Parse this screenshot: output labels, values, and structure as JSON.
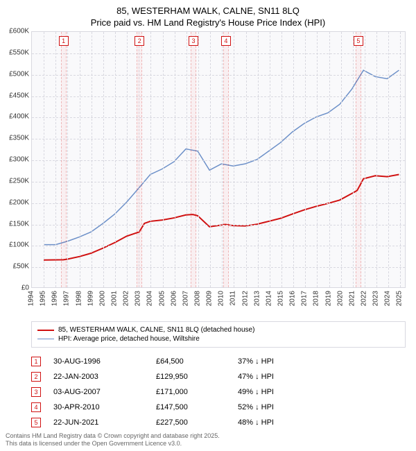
{
  "title_line1": "85, WESTERHAM WALK, CALNE, SN11 8LQ",
  "title_line2": "Price paid vs. HM Land Registry's House Price Index (HPI)",
  "chart": {
    "type": "line",
    "background_color": "#f9f9fb",
    "grid_color": "#d8d8e0",
    "x_min": 1994,
    "x_max": 2025.5,
    "y_min": 0,
    "y_max": 600000,
    "y_ticks": [
      0,
      50000,
      100000,
      150000,
      200000,
      250000,
      300000,
      350000,
      400000,
      450000,
      500000,
      550000,
      600000
    ],
    "y_tick_labels": [
      "£0",
      "£50K",
      "£100K",
      "£150K",
      "£200K",
      "£250K",
      "£300K",
      "£350K",
      "£400K",
      "£450K",
      "£500K",
      "£550K",
      "£600K"
    ],
    "x_ticks": [
      1994,
      1995,
      1996,
      1997,
      1998,
      1999,
      2000,
      2001,
      2002,
      2003,
      2004,
      2005,
      2006,
      2007,
      2008,
      2009,
      2010,
      2011,
      2012,
      2013,
      2014,
      2015,
      2016,
      2017,
      2018,
      2019,
      2020,
      2021,
      2022,
      2023,
      2024,
      2025
    ],
    "series": [
      {
        "name": "property",
        "label": "85, WESTERHAM WALK, CALNE, SN11 8LQ (detached house)",
        "color": "#d01010",
        "width": 2,
        "points": [
          [
            1995,
            64000
          ],
          [
            1996.66,
            64500
          ],
          [
            1997,
            66000
          ],
          [
            1998,
            72000
          ],
          [
            1999,
            80000
          ],
          [
            2000,
            92000
          ],
          [
            2001,
            105000
          ],
          [
            2002,
            120000
          ],
          [
            2003.06,
            129950
          ],
          [
            2003.5,
            150000
          ],
          [
            2004,
            155000
          ],
          [
            2005,
            158000
          ],
          [
            2006,
            163000
          ],
          [
            2007,
            170000
          ],
          [
            2007.59,
            171000
          ],
          [
            2008,
            168000
          ],
          [
            2009,
            142000
          ],
          [
            2010.33,
            147500
          ],
          [
            2011,
            145000
          ],
          [
            2012,
            144000
          ],
          [
            2013,
            148000
          ],
          [
            2014,
            155000
          ],
          [
            2015,
            162000
          ],
          [
            2016,
            172000
          ],
          [
            2017,
            182000
          ],
          [
            2018,
            190000
          ],
          [
            2019,
            197000
          ],
          [
            2020,
            205000
          ],
          [
            2021,
            220000
          ],
          [
            2021.47,
            227500
          ],
          [
            2022,
            255000
          ],
          [
            2023,
            262000
          ],
          [
            2024,
            260000
          ],
          [
            2025,
            265000
          ]
        ]
      },
      {
        "name": "hpi",
        "label": "HPI: Average price, detached house, Wiltshire",
        "color": "#6b8fc8",
        "width": 1.5,
        "points": [
          [
            1995,
            100000
          ],
          [
            1996,
            100000
          ],
          [
            1997,
            108000
          ],
          [
            1998,
            118000
          ],
          [
            1999,
            130000
          ],
          [
            2000,
            150000
          ],
          [
            2001,
            172000
          ],
          [
            2002,
            200000
          ],
          [
            2003,
            232000
          ],
          [
            2004,
            265000
          ],
          [
            2005,
            278000
          ],
          [
            2006,
            295000
          ],
          [
            2007,
            325000
          ],
          [
            2008,
            320000
          ],
          [
            2009,
            275000
          ],
          [
            2010,
            290000
          ],
          [
            2011,
            285000
          ],
          [
            2012,
            290000
          ],
          [
            2013,
            300000
          ],
          [
            2014,
            320000
          ],
          [
            2015,
            340000
          ],
          [
            2016,
            365000
          ],
          [
            2017,
            385000
          ],
          [
            2018,
            400000
          ],
          [
            2019,
            410000
          ],
          [
            2020,
            430000
          ],
          [
            2021,
            465000
          ],
          [
            2022,
            510000
          ],
          [
            2023,
            495000
          ],
          [
            2024,
            490000
          ],
          [
            2025,
            510000
          ]
        ]
      }
    ],
    "markers": [
      {
        "n": "1",
        "x": 1996.66
      },
      {
        "n": "2",
        "x": 2003.06
      },
      {
        "n": "3",
        "x": 2007.59
      },
      {
        "n": "4",
        "x": 2010.33
      },
      {
        "n": "5",
        "x": 2021.47
      }
    ]
  },
  "legend": {
    "items": [
      {
        "color": "#d01010",
        "width": 2,
        "label_key": "chart.series.0.label"
      },
      {
        "color": "#6b8fc8",
        "width": 1.5,
        "label_key": "chart.series.1.label"
      }
    ]
  },
  "sales": [
    {
      "n": "1",
      "date": "30-AUG-1996",
      "price": "£64,500",
      "pct": "37% ↓ HPI"
    },
    {
      "n": "2",
      "date": "22-JAN-2003",
      "price": "£129,950",
      "pct": "47% ↓ HPI"
    },
    {
      "n": "3",
      "date": "03-AUG-2007",
      "price": "£171,000",
      "pct": "49% ↓ HPI"
    },
    {
      "n": "4",
      "date": "30-APR-2010",
      "price": "£147,500",
      "pct": "52% ↓ HPI"
    },
    {
      "n": "5",
      "date": "22-JUN-2021",
      "price": "£227,500",
      "pct": "48% ↓ HPI"
    }
  ],
  "license_line1": "Contains HM Land Registry data © Crown copyright and database right 2025.",
  "license_line2": "This data is licensed under the Open Government Licence v3.0."
}
